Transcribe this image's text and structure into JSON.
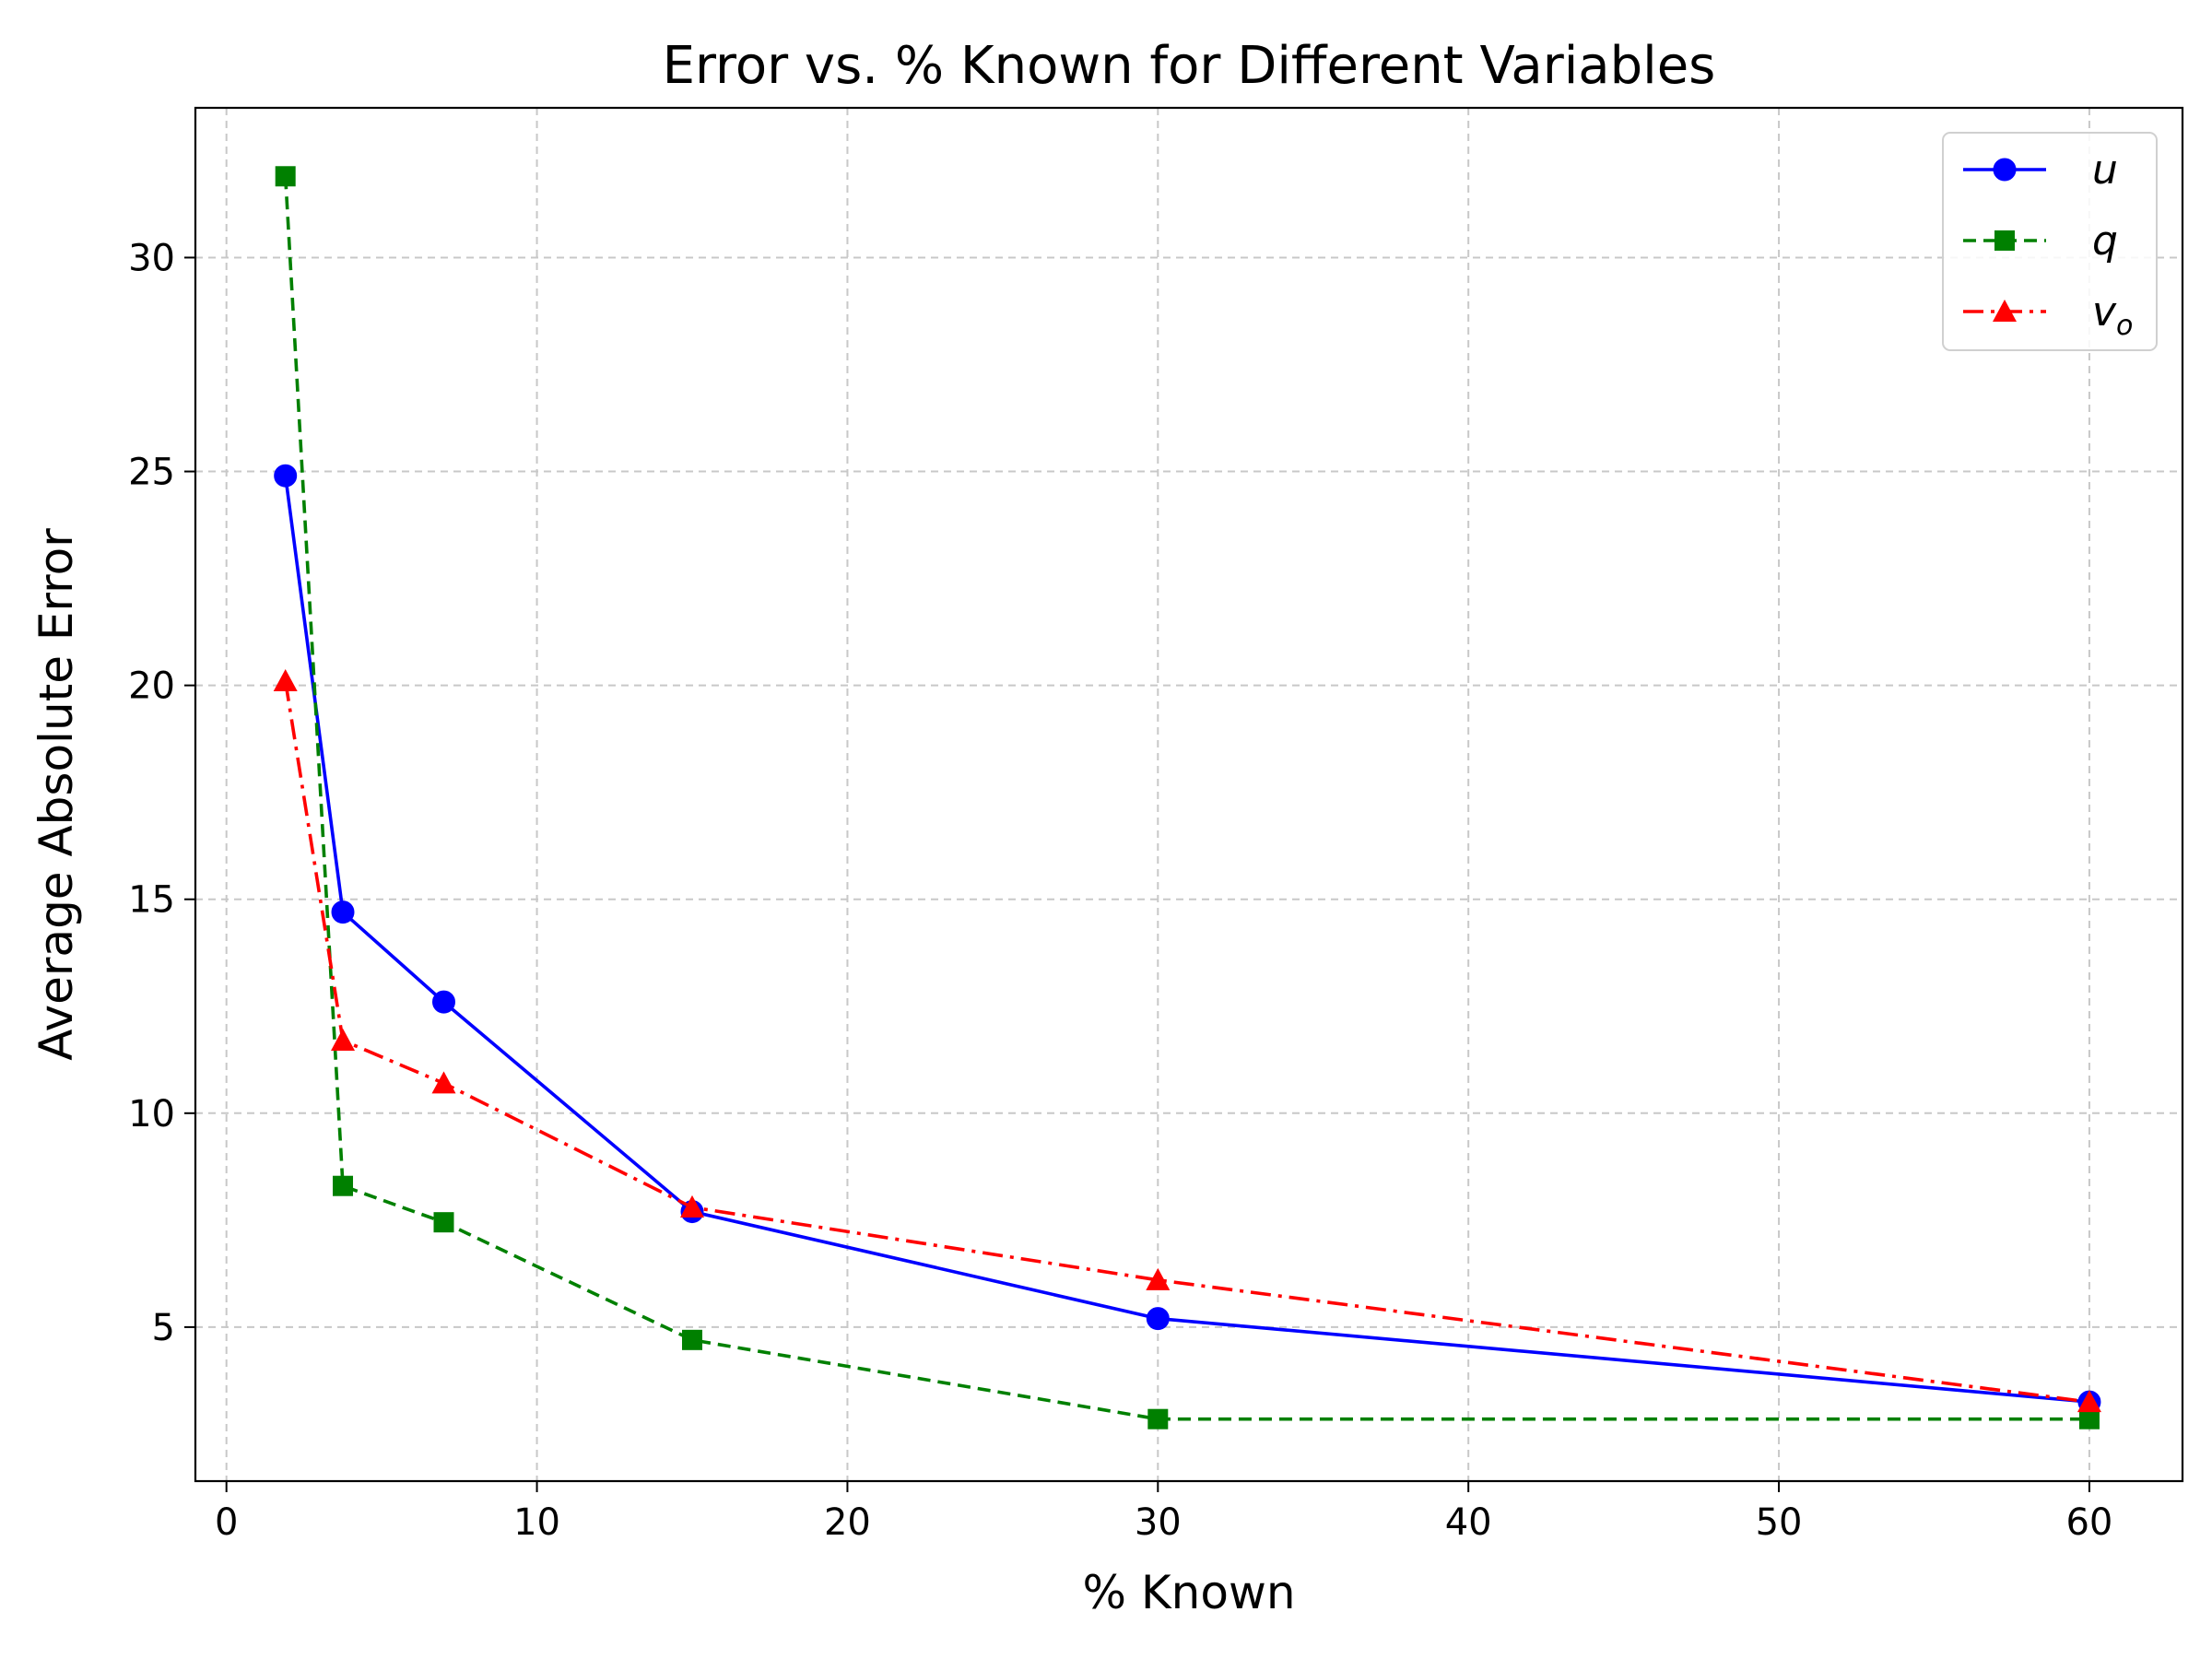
{
  "chart_data": {
    "type": "line",
    "title": "Error vs. % Known for Different Variables",
    "xlabel": "% Known",
    "ylabel": "Average Absolute Error",
    "xlim": [
      -1,
      63
    ],
    "ylim": [
      1.4,
      33.5
    ],
    "xticks": [
      0,
      10,
      20,
      30,
      40,
      50,
      60
    ],
    "yticks": [
      5,
      10,
      15,
      20,
      25,
      30
    ],
    "grid": true,
    "legend_position": "top-right",
    "x": [
      1.9,
      3.75,
      7,
      15,
      30,
      60
    ],
    "series": [
      {
        "name": "u",
        "values": [
          24.9,
          14.7,
          12.6,
          7.7,
          5.2,
          3.25
        ],
        "color": "#0000ff",
        "line_style": "solid",
        "marker": "circle"
      },
      {
        "name": "q",
        "values": [
          31.9,
          8.3,
          7.45,
          4.7,
          2.85,
          2.85
        ],
        "color": "#008000",
        "line_style": "dashed",
        "marker": "square"
      },
      {
        "name": "v",
        "name_subscript": "o",
        "values": [
          20.1,
          11.7,
          10.7,
          7.8,
          6.1,
          3.25
        ],
        "color": "#ff0000",
        "line_style": "dash-dot",
        "marker": "triangle"
      }
    ]
  }
}
